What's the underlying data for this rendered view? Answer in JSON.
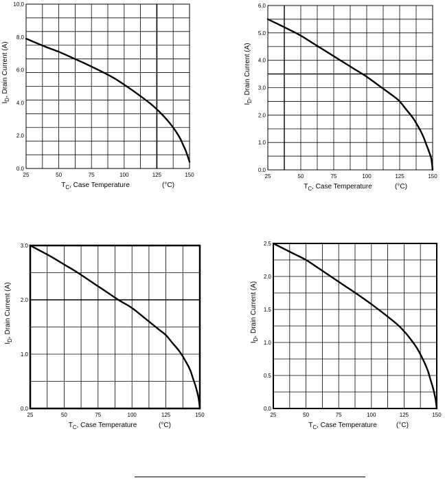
{
  "chart_data": [
    {
      "type": "line",
      "xlabel": "T_C, Case Temperature (°C)",
      "xlabel_parts": {
        "main": "T",
        "sub": "C",
        "rest": ", Case Temperature",
        "unit": "(°C)"
      },
      "ylabel": "I_D, Drain Current (A)",
      "ylabel_parts": {
        "main": "I",
        "sub": "D",
        "rest": ", Drain Current (A)"
      },
      "xlim": [
        25,
        150
      ],
      "ylim": [
        0,
        10
      ],
      "xticks": [
        25,
        50,
        75,
        100,
        125,
        150
      ],
      "yticks": [
        0,
        2,
        4,
        6,
        8,
        10
      ],
      "ytick_labels": [
        "0.0",
        "2.0",
        "4.0",
        "6.0",
        "8.0",
        "10.0"
      ],
      "grid": true,
      "x": [
        25,
        40,
        50,
        60,
        75,
        90,
        100,
        110,
        120,
        125,
        130,
        135,
        140,
        143,
        145,
        147,
        149,
        150
      ],
      "y": [
        7.9,
        7.4,
        7.1,
        6.75,
        6.2,
        5.6,
        5.1,
        4.55,
        3.95,
        3.6,
        3.2,
        2.75,
        2.2,
        1.8,
        1.45,
        1.1,
        0.65,
        0.4
      ]
    },
    {
      "type": "line",
      "xlabel": "T_C, Case Temperature (°C)",
      "xlabel_parts": {
        "main": "T",
        "sub": "C",
        "rest": ", Case Temperature",
        "unit": "(°C)"
      },
      "ylabel": "I_D, Drain Current (A)",
      "ylabel_parts": {
        "main": "I",
        "sub": "D",
        "rest": ", Drain Current (A)"
      },
      "xlim": [
        25,
        150
      ],
      "ylim": [
        0,
        6
      ],
      "xticks": [
        25,
        50,
        75,
        100,
        125,
        150
      ],
      "yticks": [
        0,
        1,
        2,
        3,
        4,
        5,
        6
      ],
      "ytick_labels": [
        "0.0",
        "1.0",
        "2.0",
        "3.0",
        "4.0",
        "5.0",
        "6.0"
      ],
      "grid": true,
      "x": [
        25,
        40,
        50,
        60,
        75,
        90,
        100,
        110,
        120,
        125,
        130,
        135,
        140,
        143,
        145,
        147,
        149,
        150
      ],
      "y": [
        5.5,
        5.15,
        4.9,
        4.6,
        4.15,
        3.7,
        3.4,
        3.05,
        2.7,
        2.5,
        2.2,
        1.9,
        1.5,
        1.2,
        0.95,
        0.7,
        0.4,
        0.0
      ]
    },
    {
      "type": "line",
      "xlabel": "T_C, Case Temperature (°C)",
      "xlabel_parts": {
        "main": "T",
        "sub": "C",
        "rest": ", Case Temperature",
        "unit": "(°C)"
      },
      "ylabel": "I_D, Drain Current (A)",
      "ylabel_parts": {
        "main": "I",
        "sub": "D",
        "rest": ", Drain Current (A)"
      },
      "xlim": [
        25,
        150
      ],
      "ylim": [
        0,
        3
      ],
      "xticks": [
        25,
        50,
        75,
        100,
        125,
        150
      ],
      "yticks": [
        0,
        1,
        2,
        3
      ],
      "ytick_labels": [
        "0.0",
        "1.0",
        "2.0",
        "3.0"
      ],
      "grid": true,
      "x": [
        25,
        40,
        50,
        60,
        75,
        90,
        100,
        110,
        120,
        125,
        130,
        135,
        140,
        143,
        145,
        147,
        149,
        150
      ],
      "y": [
        3.0,
        2.8,
        2.65,
        2.5,
        2.25,
        2.0,
        1.85,
        1.65,
        1.45,
        1.35,
        1.2,
        1.05,
        0.85,
        0.7,
        0.55,
        0.4,
        0.2,
        0.0
      ]
    },
    {
      "type": "line",
      "xlabel": "T_C, Case Temperature (°C)",
      "xlabel_parts": {
        "main": "T",
        "sub": "C",
        "rest": ", Case Temperature",
        "unit": "(°C)"
      },
      "ylabel": "I_D, Drain Current (A)",
      "ylabel_parts": {
        "main": "I",
        "sub": "D",
        "rest": ", Drain Current (A)"
      },
      "xlim": [
        25,
        150
      ],
      "ylim": [
        0,
        2.5
      ],
      "xticks": [
        25,
        50,
        75,
        100,
        125,
        150
      ],
      "yticks": [
        0,
        0.5,
        1.0,
        1.5,
        2.0,
        2.5
      ],
      "ytick_labels": [
        "0.0",
        "0.5",
        "1.0",
        "1.5",
        "2.0",
        "2.5"
      ],
      "grid": true,
      "x": [
        25,
        40,
        50,
        60,
        75,
        90,
        100,
        110,
        120,
        125,
        130,
        135,
        140,
        143,
        145,
        147,
        149,
        150
      ],
      "y": [
        2.5,
        2.35,
        2.25,
        2.12,
        1.92,
        1.72,
        1.58,
        1.43,
        1.27,
        1.17,
        1.05,
        0.91,
        0.72,
        0.58,
        0.45,
        0.32,
        0.15,
        0.0
      ]
    }
  ]
}
